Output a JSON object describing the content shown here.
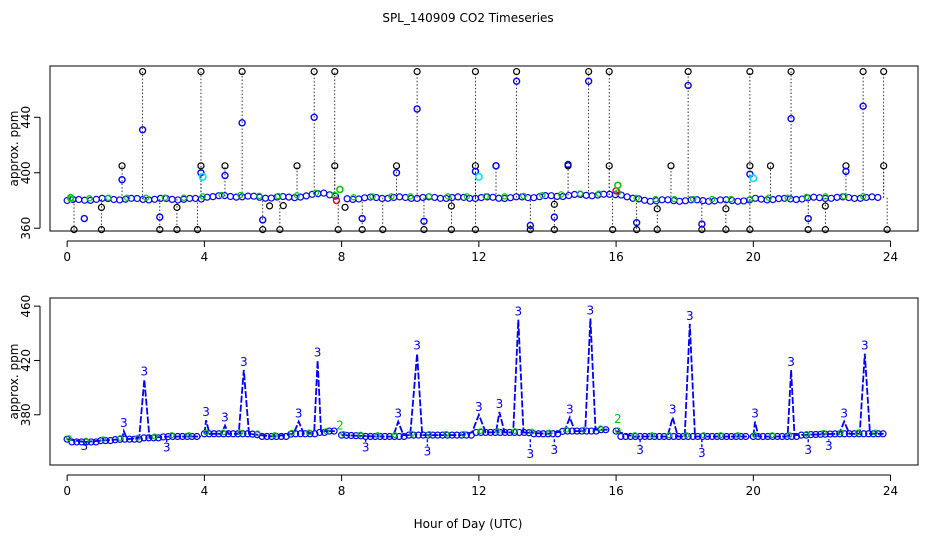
{
  "title": "SPL_140909  CO2 Timeseries",
  "xlabel": "Hour of Day (UTC)",
  "colors": {
    "raw": "#000000",
    "filtered": "#0000ff",
    "ok": "#00cc00",
    "flag_cyan": "#00e5ff",
    "flag_red": "#ff0000",
    "line": "#0000ff"
  },
  "chart_data": [
    {
      "type": "scatter",
      "name": "top-panel",
      "ylabel": "approx. ppm",
      "xlim": [
        -0.5,
        24.8
      ],
      "ylim": [
        358,
        477
      ],
      "xticks": [
        0,
        4,
        8,
        12,
        16,
        20,
        24
      ],
      "yticks": [
        360,
        400,
        440
      ],
      "xtick_labels": [
        "0",
        "4",
        "8",
        "12",
        "16",
        "20",
        "24"
      ],
      "ytick_labels": [
        "360",
        "400",
        "440"
      ],
      "baseline": [
        [
          0,
          380
        ],
        [
          1,
          381
        ],
        [
          2,
          381
        ],
        [
          3,
          381
        ],
        [
          3.9,
          381
        ],
        [
          4,
          383
        ],
        [
          5,
          383
        ],
        [
          6,
          382
        ],
        [
          7,
          383
        ],
        [
          7.5,
          386
        ],
        [
          7.9,
          382
        ],
        [
          8,
          381
        ],
        [
          9,
          382
        ],
        [
          10,
          382
        ],
        [
          11,
          382
        ],
        [
          12,
          382
        ],
        [
          13,
          382
        ],
        [
          14,
          383
        ],
        [
          15,
          384
        ],
        [
          15.9,
          384
        ],
        [
          16.1,
          385
        ],
        [
          16.5,
          381
        ],
        [
          17,
          380
        ],
        [
          18,
          380
        ],
        [
          19,
          380
        ],
        [
          19.9,
          380
        ],
        [
          20,
          381
        ],
        [
          21,
          381
        ],
        [
          22,
          382
        ],
        [
          23,
          382
        ],
        [
          23.7,
          382
        ]
      ],
      "spikes_high": [
        2.2,
        3.9,
        5.1,
        7.2,
        7.8,
        10.2,
        11.9,
        13.1,
        15.2,
        15.8,
        18.1,
        19.9,
        21.1,
        23.2,
        23.8
      ],
      "spikes_mid": [
        1.6,
        3.9,
        4.6,
        6.7,
        7.8,
        9.6,
        11.9,
        12.5,
        14.6,
        15.8,
        17.6,
        19.9,
        20.5,
        22.7,
        23.8
      ],
      "spikes_low": [
        0.2,
        1.0,
        2.7,
        3.2,
        3.8,
        5.7,
        6.2,
        7.9,
        8.6,
        9.2,
        10.4,
        11.2,
        11.9,
        13.5,
        14.2,
        15.9,
        16.6,
        17.2,
        18.5,
        19.2,
        19.9,
        21.6,
        22.1,
        23.9
      ],
      "blue_highs": [
        [
          2.2,
          431
        ],
        [
          3.9,
          400
        ],
        [
          5.1,
          436
        ],
        [
          7.2,
          440
        ],
        [
          10.2,
          446
        ],
        [
          11.9,
          401
        ],
        [
          13.1,
          466
        ],
        [
          15.2,
          466
        ],
        [
          18.1,
          463
        ],
        [
          19.9,
          399
        ],
        [
          21.1,
          439
        ],
        [
          23.2,
          448
        ],
        [
          1.6,
          395
        ],
        [
          4.6,
          398
        ],
        [
          9.6,
          400
        ],
        [
          12.5,
          405
        ],
        [
          14.6,
          406
        ],
        [
          22.7,
          401
        ]
      ],
      "blue_lows": [
        [
          0.5,
          367
        ],
        [
          2.7,
          368
        ],
        [
          5.7,
          366
        ],
        [
          8.6,
          367
        ],
        [
          10.4,
          365
        ],
        [
          13.5,
          362
        ],
        [
          14.2,
          368
        ],
        [
          16.6,
          364
        ],
        [
          18.5,
          363
        ],
        [
          21.6,
          367
        ]
      ],
      "cyan_points": [
        [
          3.95,
          397
        ],
        [
          12.0,
          397
        ],
        [
          20.0,
          396
        ]
      ],
      "red_points": [
        [
          16.0,
          387
        ],
        [
          7.85,
          380
        ]
      ],
      "green_points": [
        [
          0.1,
          382
        ],
        [
          7.95,
          388
        ],
        [
          16.05,
          391
        ]
      ]
    },
    {
      "type": "line",
      "name": "bottom-panel",
      "ylabel": "approx. ppm",
      "xlim": [
        -0.5,
        24.8
      ],
      "ylim": [
        343,
        466
      ],
      "xticks": [
        0,
        4,
        8,
        12,
        16,
        20,
        24
      ],
      "yticks": [
        380,
        420,
        460
      ],
      "xtick_labels": [
        "0",
        "4",
        "8",
        "12",
        "16",
        "20",
        "24"
      ],
      "ytick_labels": [
        "380",
        "420",
        "460"
      ],
      "peak_label": "3",
      "flag_label": "2",
      "series": [
        {
          "name": "seg1",
          "points": [
            [
              0,
              362
            ],
            [
              0.5,
              360
            ],
            [
              1.0,
              361
            ],
            [
              1.6,
              362
            ],
            [
              1.65,
              368
            ],
            [
              1.75,
              362
            ],
            [
              2.1,
              363
            ],
            [
              2.25,
              406
            ],
            [
              2.4,
              363
            ],
            [
              3.0,
              364
            ],
            [
              3.9,
              364
            ]
          ]
        },
        {
          "name": "seg2",
          "points": [
            [
              4.0,
              366
            ],
            [
              4.05,
              376
            ],
            [
              4.15,
              366
            ],
            [
              4.5,
              366
            ],
            [
              4.6,
              372
            ],
            [
              4.7,
              366
            ],
            [
              5.0,
              366
            ],
            [
              5.15,
              413
            ],
            [
              5.3,
              366
            ],
            [
              6.0,
              364
            ],
            [
              6.6,
              366
            ],
            [
              6.75,
              375
            ],
            [
              6.9,
              366
            ],
            [
              7.2,
              367
            ],
            [
              7.3,
              420
            ],
            [
              7.4,
              368
            ],
            [
              7.8,
              368
            ]
          ]
        },
        {
          "name": "seg3",
          "points": [
            [
              8.0,
              365
            ],
            [
              9.0,
              364
            ],
            [
              9.5,
              364
            ],
            [
              9.65,
              375
            ],
            [
              9.8,
              365
            ],
            [
              10.0,
              365
            ],
            [
              10.2,
              425
            ],
            [
              10.35,
              365
            ],
            [
              11.5,
              365
            ],
            [
              11.8,
              367
            ],
            [
              12.0,
              380
            ],
            [
              12.2,
              367
            ],
            [
              12.5,
              367
            ],
            [
              12.6,
              382
            ],
            [
              12.75,
              367
            ],
            [
              13.0,
              367
            ],
            [
              13.15,
              450
            ],
            [
              13.3,
              367
            ],
            [
              14.0,
              366
            ],
            [
              14.5,
              368
            ],
            [
              14.65,
              378
            ],
            [
              14.8,
              368
            ],
            [
              15.1,
              368
            ],
            [
              15.25,
              451
            ],
            [
              15.4,
              369
            ],
            [
              15.8,
              369
            ]
          ]
        },
        {
          "name": "seg4",
          "points": [
            [
              16.0,
              368
            ],
            [
              16.5,
              364
            ],
            [
              17.0,
              364
            ],
            [
              17.5,
              364
            ],
            [
              17.65,
              378
            ],
            [
              17.8,
              364
            ],
            [
              18.0,
              364
            ],
            [
              18.15,
              447
            ],
            [
              18.3,
              364
            ],
            [
              19.0,
              364
            ],
            [
              19.9,
              364
            ]
          ]
        },
        {
          "name": "seg5",
          "points": [
            [
              20.0,
              364
            ],
            [
              20.05,
              375
            ],
            [
              20.15,
              364
            ],
            [
              21.0,
              364
            ],
            [
              21.1,
              413
            ],
            [
              21.2,
              365
            ],
            [
              22.5,
              366
            ],
            [
              22.65,
              375
            ],
            [
              22.8,
              366
            ],
            [
              23.1,
              366
            ],
            [
              23.25,
              425
            ],
            [
              23.4,
              366
            ],
            [
              23.8,
              366
            ]
          ]
        }
      ],
      "down_spikes": [
        [
          0.5,
          357
        ],
        [
          2.9,
          356
        ],
        [
          8.7,
          356
        ],
        [
          10.5,
          353
        ],
        [
          13.5,
          351
        ],
        [
          14.2,
          354
        ],
        [
          16.7,
          354
        ],
        [
          18.5,
          352
        ],
        [
          21.6,
          354
        ],
        [
          22.2,
          357
        ]
      ],
      "flag_twos": [
        [
          7.95,
          369
        ],
        [
          16.05,
          374
        ]
      ]
    }
  ]
}
